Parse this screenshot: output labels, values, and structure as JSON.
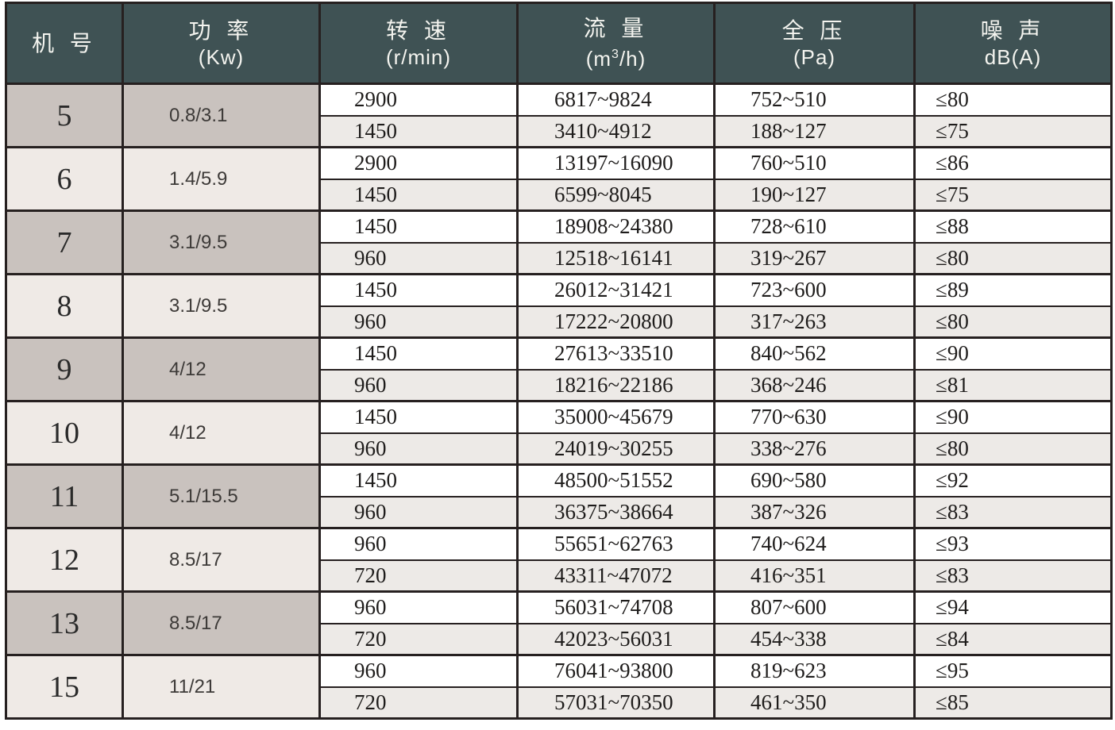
{
  "table": {
    "headers": {
      "model": {
        "title": "机 号",
        "unit": ""
      },
      "power": {
        "title": "功 率",
        "unit": "(Kw)"
      },
      "speed": {
        "title": "转 速",
        "unit": "(r/min)"
      },
      "flow": {
        "title": "流 量",
        "unit_prefix": "(m",
        "unit_sup": "3",
        "unit_suffix": "/h)"
      },
      "pressure": {
        "title": "全 压",
        "unit": "(Pa)"
      },
      "noise": {
        "title": "噪 声",
        "unit": "dB(A)"
      }
    },
    "rows": [
      {
        "model": "5",
        "power": "0.8/3.1",
        "subrows": [
          {
            "speed": "2900",
            "flow": "6817~9824",
            "pressure": "752~510",
            "noise": "≤80"
          },
          {
            "speed": "1450",
            "flow": "3410~4912",
            "pressure": "188~127",
            "noise": "≤75"
          }
        ]
      },
      {
        "model": "6",
        "power": "1.4/5.9",
        "subrows": [
          {
            "speed": "2900",
            "flow": "13197~16090",
            "pressure": "760~510",
            "noise": "≤86"
          },
          {
            "speed": "1450",
            "flow": "6599~8045",
            "pressure": "190~127",
            "noise": "≤75"
          }
        ]
      },
      {
        "model": "7",
        "power": "3.1/9.5",
        "subrows": [
          {
            "speed": "1450",
            "flow": "18908~24380",
            "pressure": "728~610",
            "noise": "≤88"
          },
          {
            "speed": "960",
            "flow": "12518~16141",
            "pressure": "319~267",
            "noise": "≤80"
          }
        ]
      },
      {
        "model": "8",
        "power": "3.1/9.5",
        "subrows": [
          {
            "speed": "1450",
            "flow": "26012~31421",
            "pressure": "723~600",
            "noise": "≤89"
          },
          {
            "speed": "960",
            "flow": "17222~20800",
            "pressure": "317~263",
            "noise": "≤80"
          }
        ]
      },
      {
        "model": "9",
        "power": "4/12",
        "subrows": [
          {
            "speed": "1450",
            "flow": "27613~33510",
            "pressure": "840~562",
            "noise": "≤90"
          },
          {
            "speed": "960",
            "flow": "18216~22186",
            "pressure": "368~246",
            "noise": "≤81"
          }
        ]
      },
      {
        "model": "10",
        "power": "4/12",
        "subrows": [
          {
            "speed": "1450",
            "flow": "35000~45679",
            "pressure": "770~630",
            "noise": "≤90"
          },
          {
            "speed": "960",
            "flow": "24019~30255",
            "pressure": "338~276",
            "noise": "≤80"
          }
        ]
      },
      {
        "model": "11",
        "power": "5.1/15.5",
        "subrows": [
          {
            "speed": "1450",
            "flow": "48500~51552",
            "pressure": "690~580",
            "noise": "≤92"
          },
          {
            "speed": "960",
            "flow": "36375~38664",
            "pressure": "387~326",
            "noise": "≤83"
          }
        ]
      },
      {
        "model": "12",
        "power": "8.5/17",
        "subrows": [
          {
            "speed": "960",
            "flow": "55651~62763",
            "pressure": "740~624",
            "noise": "≤93"
          },
          {
            "speed": "720",
            "flow": "43311~47072",
            "pressure": "416~351",
            "noise": "≤83"
          }
        ]
      },
      {
        "model": "13",
        "power": "8.5/17",
        "subrows": [
          {
            "speed": "960",
            "flow": "56031~74708",
            "pressure": "807~600",
            "noise": "≤94"
          },
          {
            "speed": "720",
            "flow": "42023~56031",
            "pressure": "454~338",
            "noise": "≤84"
          }
        ]
      },
      {
        "model": "15",
        "power": "11/21",
        "subrows": [
          {
            "speed": "960",
            "flow": "76041~93800",
            "pressure": "819~623",
            "noise": "≤95"
          },
          {
            "speed": "720",
            "flow": "57031~70350",
            "pressure": "461~350",
            "noise": "≤85"
          }
        ]
      }
    ]
  },
  "colors": {
    "header_bg": "#3f5254",
    "header_text": "#f4f4ef",
    "group_tint_dark": "#c9c2be",
    "group_tint_light": "#efeae6",
    "subrow_alt_bg": "#edeae7",
    "border": "#262020"
  }
}
